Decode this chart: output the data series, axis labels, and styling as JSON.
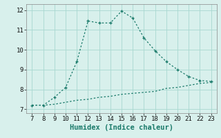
{
  "xlabel": "Humidex (Indice chaleur)",
  "x_main": [
    7,
    8,
    9,
    10,
    11,
    12,
    13,
    14,
    15,
    16,
    17,
    18,
    19,
    20,
    21,
    22,
    23
  ],
  "y_main": [
    7.2,
    7.2,
    7.6,
    8.1,
    9.4,
    11.45,
    11.35,
    11.35,
    11.95,
    11.6,
    10.6,
    9.95,
    9.4,
    9.0,
    8.65,
    8.45,
    8.4
  ],
  "x_base": [
    7,
    8,
    9,
    10,
    11,
    12,
    13,
    14,
    15,
    16,
    17,
    18,
    19,
    20,
    21,
    22,
    23
  ],
  "y_base": [
    7.2,
    7.2,
    7.25,
    7.35,
    7.45,
    7.5,
    7.6,
    7.65,
    7.75,
    7.8,
    7.85,
    7.9,
    8.05,
    8.1,
    8.2,
    8.3,
    8.35
  ],
  "line_color": "#1a7a6a",
  "bg_color": "#d8f0ec",
  "grid_color": "#a8d8d0",
  "xlim": [
    6.5,
    23.5
  ],
  "ylim": [
    6.8,
    12.3
  ],
  "xticks": [
    7,
    8,
    9,
    10,
    11,
    12,
    13,
    14,
    15,
    16,
    17,
    18,
    19,
    20,
    21,
    22,
    23
  ],
  "yticks": [
    7,
    8,
    9,
    10,
    11,
    12
  ],
  "tick_fontsize": 6.5,
  "xlabel_fontsize": 7.5
}
